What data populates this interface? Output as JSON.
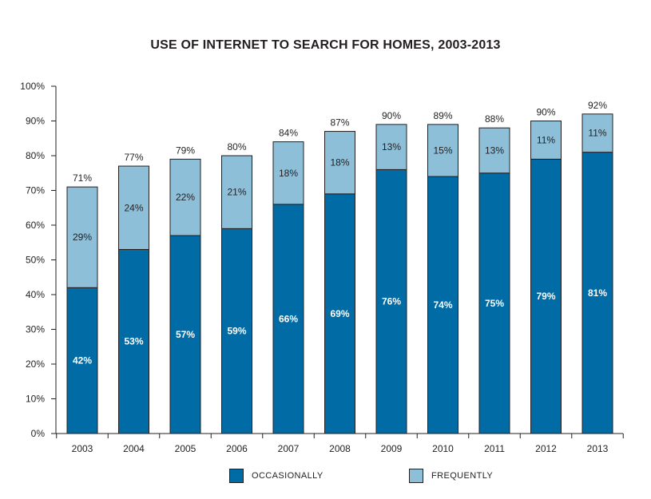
{
  "chart_data": {
    "type": "bar",
    "stacked": true,
    "title": "USE OF INTERNET TO SEARCH FOR HOMES, 2003-2013",
    "xlabel": "",
    "ylabel": "",
    "ylim": [
      0,
      100
    ],
    "yticks": [
      "0%",
      "10%",
      "20%",
      "30%",
      "40%",
      "50%",
      "60%",
      "70%",
      "80%",
      "90%",
      "100%"
    ],
    "categories": [
      "2003",
      "2004",
      "2005",
      "2006",
      "2007",
      "2008",
      "2009",
      "2010",
      "2011",
      "2012",
      "2013"
    ],
    "series": [
      {
        "name": "OCCASIONALLY",
        "color": "#006ba5",
        "values": [
          42,
          53,
          57,
          59,
          66,
          69,
          76,
          74,
          75,
          79,
          81
        ],
        "labels": [
          "42%",
          "53%",
          "57%",
          "59%",
          "66%",
          "69%",
          "76%",
          "74%",
          "75%",
          "79%",
          "81%"
        ]
      },
      {
        "name": "FREQUENTLY",
        "color": "#8dbfd9",
        "values": [
          29,
          24,
          22,
          21,
          18,
          18,
          13,
          15,
          13,
          11,
          11
        ],
        "labels": [
          "29%",
          "24%",
          "22%",
          "21%",
          "18%",
          "18%",
          "13%",
          "15%",
          "13%",
          "11%",
          "11%"
        ]
      }
    ],
    "totals": [
      71,
      77,
      79,
      80,
      84,
      87,
      90,
      89,
      88,
      90,
      92
    ],
    "total_labels": [
      "71%",
      "77%",
      "79%",
      "80%",
      "84%",
      "87%",
      "90%",
      "89%",
      "88%",
      "90%",
      "92%"
    ],
    "grid": false,
    "legend_position": "bottom"
  }
}
